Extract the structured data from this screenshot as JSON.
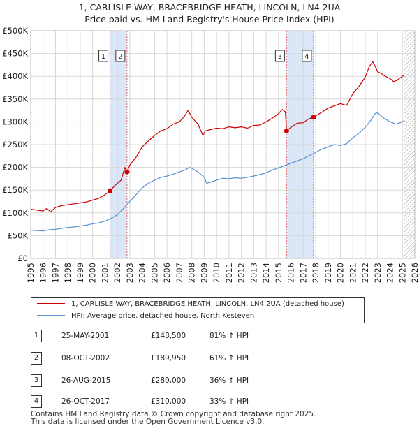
{
  "header": {
    "title_line1": "1, CARLISLE WAY, BRACEBRIDGE HEATH, LINCOLN, LN4 2UA",
    "title_line2": "Price paid vs. HM Land Registry's House Price Index (HPI)"
  },
  "legend": {
    "items": [
      {
        "label": "1, CARLISLE WAY, BRACEBRIDGE HEATH, LINCOLN, LN4 2UA (detached house)",
        "color": "#cc0000"
      },
      {
        "label": "HPI: Average price, detached house, North Kesteven",
        "color": "#5b8fd0"
      }
    ]
  },
  "sales_table": [
    {
      "num": "1",
      "date": "25-MAY-2001",
      "price": "£148,500",
      "hpi": "81% ↑ HPI"
    },
    {
      "num": "2",
      "date": "08-OCT-2002",
      "price": "£189,950",
      "hpi": "61% ↑ HPI"
    },
    {
      "num": "3",
      "date": "26-AUG-2015",
      "price": "£280,000",
      "hpi": "36% ↑ HPI"
    },
    {
      "num": "4",
      "date": "26-OCT-2017",
      "price": "£310,000",
      "hpi": "33% ↑ HPI"
    }
  ],
  "footer": {
    "line1": "Contains HM Land Registry data © Crown copyright and database right 2025.",
    "line2": "This data is licensed under the Open Government Licence v3.0."
  },
  "colors": {
    "property_line": "#cc0000",
    "hpi_line": "#5b8fd0",
    "shade": "#dbe6f6",
    "grid": "#d8d8d8",
    "marker_line": "#e06060"
  },
  "chart_data": {
    "type": "line",
    "xlim": [
      1995,
      2026
    ],
    "ylim": [
      0,
      500000
    ],
    "x_ticks": [
      "1995",
      "1996",
      "1997",
      "1998",
      "1999",
      "2000",
      "2001",
      "2002",
      "2003",
      "2004",
      "2005",
      "2006",
      "2007",
      "2008",
      "2009",
      "2010",
      "2011",
      "2012",
      "2013",
      "2014",
      "2015",
      "2016",
      "2017",
      "2018",
      "2019",
      "2020",
      "2021",
      "2022",
      "2023",
      "2024",
      "2025",
      "2026"
    ],
    "y_ticks": [
      {
        "value": 0,
        "label": "£0"
      },
      {
        "value": 50000,
        "label": "£50K"
      },
      {
        "value": 100000,
        "label": "£100K"
      },
      {
        "value": 150000,
        "label": "£150K"
      },
      {
        "value": 200000,
        "label": "£200K"
      },
      {
        "value": 250000,
        "label": "£250K"
      },
      {
        "value": 300000,
        "label": "£300K"
      },
      {
        "value": 350000,
        "label": "£350K"
      },
      {
        "value": 400000,
        "label": "£400K"
      },
      {
        "value": 450000,
        "label": "£450K"
      },
      {
        "value": 500000,
        "label": "£500K"
      }
    ],
    "shaded_periods": [
      [
        2001.4,
        2002.77
      ],
      [
        2015.65,
        2017.82
      ]
    ],
    "future_hatch_from": 2025.1,
    "sales": [
      {
        "label": "1",
        "x": 2001.4,
        "y": 148500
      },
      {
        "label": "2",
        "x": 2002.77,
        "y": 189950
      },
      {
        "label": "3",
        "x": 2015.65,
        "y": 280000
      },
      {
        "label": "4",
        "x": 2017.82,
        "y": 310000
      }
    ],
    "series": [
      {
        "name": "1, CARLISLE WAY, BRACEBRIDGE HEATH, LINCOLN, LN4 2UA (detached house)",
        "color": "#cc0000",
        "x": [
          1995.0,
          1995.5,
          1996.0,
          1996.3,
          1996.6,
          1997.0,
          1997.5,
          1998.0,
          1998.5,
          1999.0,
          1999.5,
          2000.0,
          2000.5,
          2001.0,
          2001.4,
          2001.8,
          2002.3,
          2002.6,
          2002.77,
          2003.0,
          2003.5,
          2004.0,
          2004.5,
          2005.0,
          2005.5,
          2006.0,
          2006.5,
          2007.0,
          2007.4,
          2007.7,
          2008.0,
          2008.5,
          2008.9,
          2009.1,
          2009.5,
          2010.0,
          2010.5,
          2011.0,
          2011.5,
          2012.0,
          2012.5,
          2013.0,
          2013.5,
          2014.0,
          2014.5,
          2015.0,
          2015.3,
          2015.55,
          2015.65,
          2016.0,
          2016.5,
          2017.0,
          2017.4,
          2017.82,
          2018.0,
          2018.5,
          2019.0,
          2019.5,
          2020.0,
          2020.5,
          2021.0,
          2021.5,
          2022.0,
          2022.3,
          2022.6,
          2022.8,
          2023.0,
          2023.3,
          2023.6,
          2024.0,
          2024.3,
          2024.6,
          2025.0,
          2025.1
        ],
        "y": [
          108000,
          106000,
          104000,
          110000,
          102000,
          112000,
          116000,
          118000,
          120000,
          122000,
          124000,
          128000,
          132000,
          140000,
          148500,
          160000,
          172000,
          200000,
          189950,
          205000,
          222000,
          245000,
          258000,
          270000,
          280000,
          285000,
          295000,
          300000,
          312000,
          325000,
          310000,
          295000,
          270000,
          280000,
          283000,
          286000,
          285000,
          289000,
          287000,
          289000,
          286000,
          292000,
          293000,
          300000,
          308000,
          318000,
          327000,
          322000,
          280000,
          288000,
          297000,
          298000,
          306000,
          310000,
          313000,
          321000,
          330000,
          335000,
          340000,
          336000,
          362000,
          378000,
          398000,
          420000,
          432000,
          422000,
          410000,
          406000,
          400000,
          395000,
          388000,
          392000,
          400000,
          402000
        ]
      },
      {
        "name": "HPI: Average price, detached house, North Kesteven",
        "color": "#5b8fd0",
        "x": [
          1995.0,
          1995.5,
          1996.0,
          1996.5,
          1997.0,
          1997.5,
          1998.0,
          1998.5,
          1999.0,
          1999.5,
          2000.0,
          2000.5,
          2001.0,
          2001.5,
          2002.0,
          2002.5,
          2003.0,
          2003.5,
          2004.0,
          2004.5,
          2005.0,
          2005.5,
          2006.0,
          2006.5,
          2007.0,
          2007.5,
          2007.8,
          2008.0,
          2008.5,
          2009.0,
          2009.2,
          2009.5,
          2010.0,
          2010.5,
          2011.0,
          2011.5,
          2012.0,
          2012.5,
          2013.0,
          2013.5,
          2014.0,
          2014.5,
          2015.0,
          2015.5,
          2016.0,
          2016.5,
          2017.0,
          2017.5,
          2018.0,
          2018.5,
          2019.0,
          2019.5,
          2020.0,
          2020.5,
          2021.0,
          2021.5,
          2022.0,
          2022.5,
          2022.8,
          2023.0,
          2023.5,
          2024.0,
          2024.5,
          2025.0,
          2025.1
        ],
        "y": [
          62000,
          61000,
          60500,
          63000,
          64000,
          66000,
          68000,
          69000,
          71000,
          73000,
          76000,
          78000,
          82000,
          88000,
          96000,
          110000,
          125000,
          140000,
          155000,
          165000,
          172000,
          178000,
          181000,
          185000,
          190000,
          195000,
          200000,
          198000,
          190000,
          178000,
          165000,
          167000,
          172000,
          176000,
          175000,
          177000,
          176000,
          178000,
          181000,
          184000,
          188000,
          194000,
          199000,
          204000,
          209000,
          214000,
          219000,
          226000,
          233000,
          240000,
          245000,
          250000,
          248000,
          252000,
          265000,
          275000,
          288000,
          305000,
          318000,
          320000,
          308000,
          300000,
          295000,
          300000,
          302000
        ]
      }
    ]
  }
}
